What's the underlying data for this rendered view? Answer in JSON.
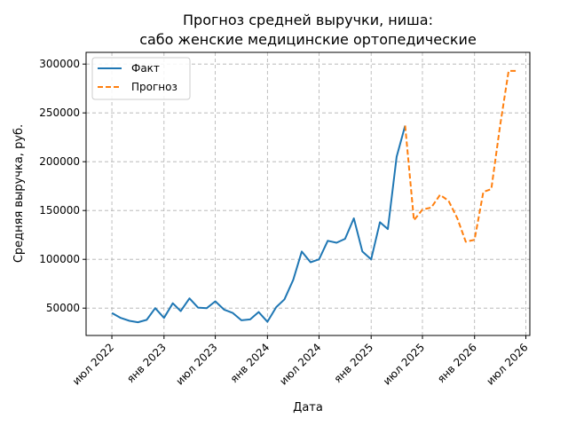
{
  "chart_data": {
    "type": "line",
    "title_lines": [
      "Прогноз средней выручки, ниша:",
      "сабо женские медицинские ортопедические"
    ],
    "xlabel": "Дата",
    "ylabel": "Средняя выручка, руб.",
    "ylim": [
      22000,
      312000
    ],
    "xlim": [
      "2022-04-01",
      "2026-07-15"
    ],
    "yticks": [
      50000,
      100000,
      150000,
      200000,
      250000,
      300000
    ],
    "xticks": [
      {
        "date": "2022-07-01",
        "label": "июл 2022"
      },
      {
        "date": "2023-01-01",
        "label": "янв 2023"
      },
      {
        "date": "2023-07-01",
        "label": "июл 2023"
      },
      {
        "date": "2024-01-01",
        "label": "янв 2024"
      },
      {
        "date": "2024-07-01",
        "label": "июл 2024"
      },
      {
        "date": "2025-01-01",
        "label": "янв 2025"
      },
      {
        "date": "2025-07-01",
        "label": "июл 2025"
      },
      {
        "date": "2026-01-01",
        "label": "янв 2026"
      },
      {
        "date": "2026-07-01",
        "label": "июл 2026"
      }
    ],
    "grid": true,
    "legend": "top-left",
    "series": [
      {
        "name": "Факт",
        "color": "#1f77b4",
        "style": "solid",
        "x": [
          "2022-07-01",
          "2022-08-01",
          "2022-09-01",
          "2022-10-01",
          "2022-11-01",
          "2022-12-01",
          "2023-01-01",
          "2023-02-01",
          "2023-03-01",
          "2023-04-01",
          "2023-05-01",
          "2023-06-01",
          "2023-07-01",
          "2023-08-01",
          "2023-09-01",
          "2023-10-01",
          "2023-11-01",
          "2023-12-01",
          "2024-01-01",
          "2024-02-01",
          "2024-03-01",
          "2024-04-01",
          "2024-05-01",
          "2024-06-01",
          "2024-07-01",
          "2024-08-01",
          "2024-09-01",
          "2024-10-01",
          "2024-11-01",
          "2024-12-01",
          "2025-01-01",
          "2025-02-01",
          "2025-03-01",
          "2025-04-01",
          "2025-05-01"
        ],
        "values": [
          45000,
          40000,
          37000,
          35500,
          38000,
          50000,
          40000,
          55000,
          47000,
          60000,
          50500,
          50000,
          57000,
          48500,
          45000,
          37500,
          38500,
          46000,
          36000,
          51000,
          59000,
          79000,
          108000,
          97000,
          100000,
          119000,
          117000,
          121000,
          142000,
          108000,
          100000,
          138000,
          131000,
          205000,
          237000
        ]
      },
      {
        "name": "Прогноз",
        "color": "#ff7f0e",
        "style": "dashed",
        "x": [
          "2025-05-01",
          "2025-06-01",
          "2025-07-01",
          "2025-08-01",
          "2025-09-01",
          "2025-10-01",
          "2025-11-01",
          "2025-12-01",
          "2026-01-01",
          "2026-02-01",
          "2026-03-01",
          "2026-04-01",
          "2026-05-01",
          "2026-06-01"
        ],
        "values": [
          237000,
          140000,
          151000,
          153000,
          166000,
          160000,
          142000,
          118000,
          120000,
          169000,
          172000,
          237000,
          293000,
          293000
        ]
      }
    ]
  }
}
